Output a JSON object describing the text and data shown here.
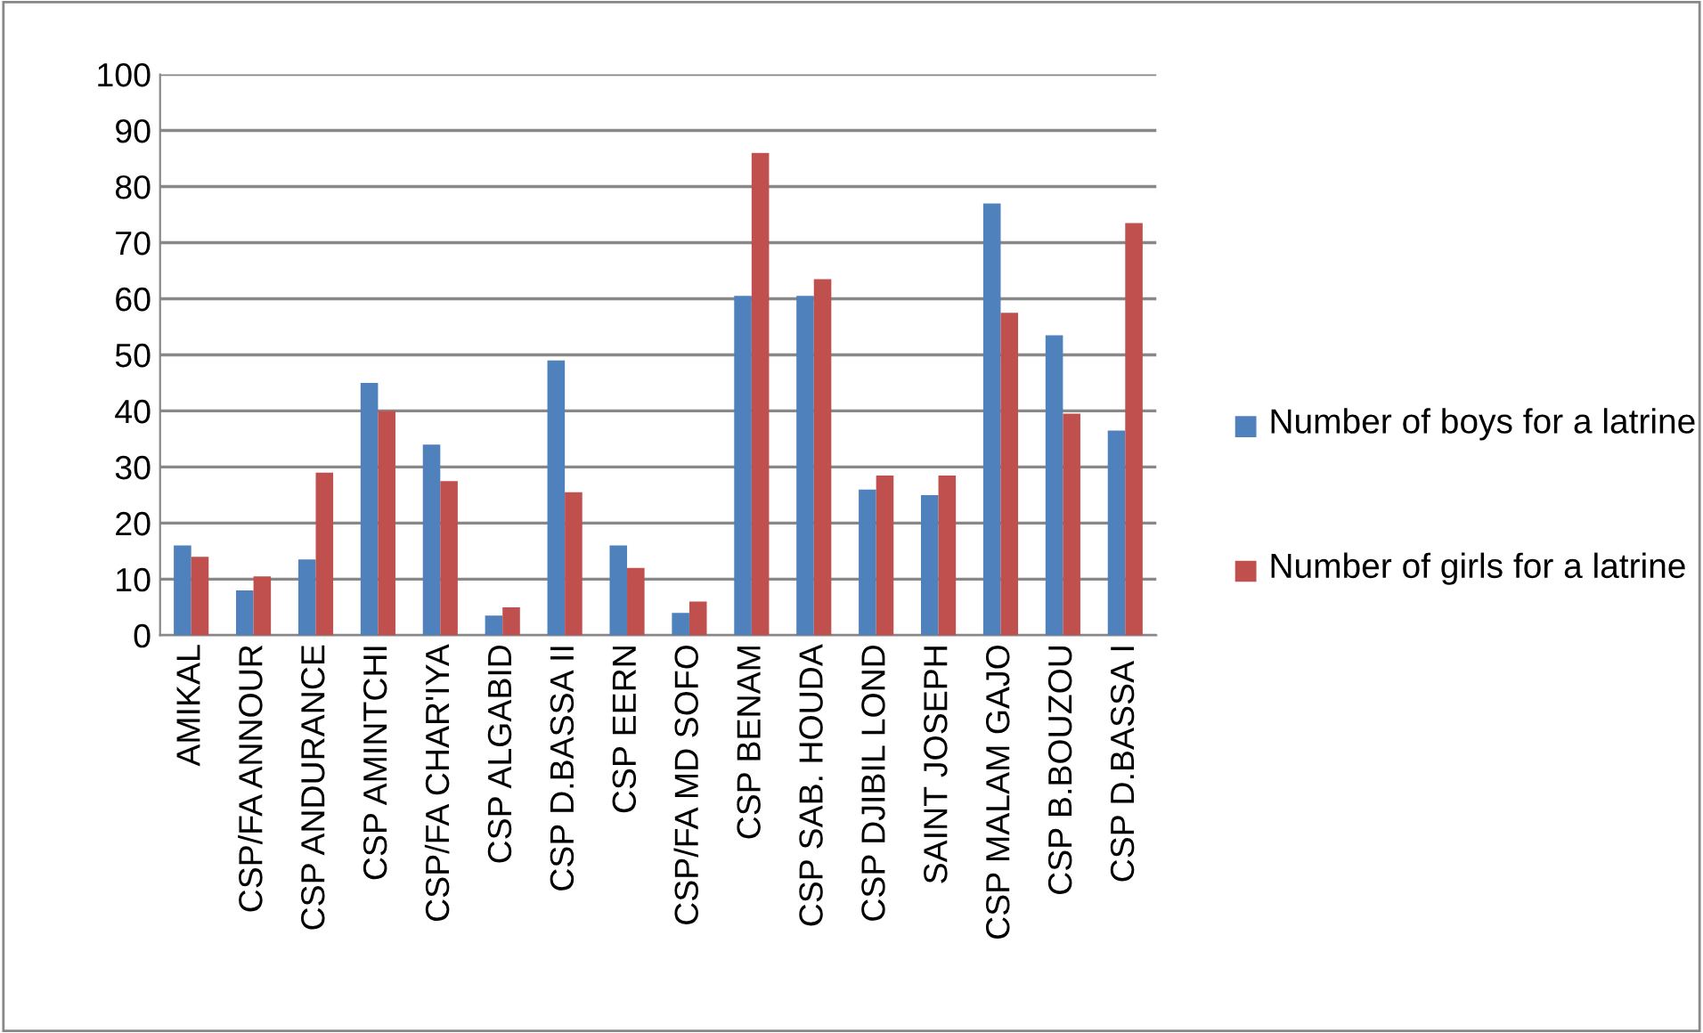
{
  "chart_data": {
    "type": "bar",
    "categories": [
      "AMIKAL",
      "CSP/FA ANNOUR",
      "CSP ANDURANCE",
      "CSP AMINTCHI",
      "CSP/FA CHAR'IYA",
      "CSP ALGABID",
      "CSP D.BASSA II",
      "CSP EERN",
      "CSP/FA MD SOFO",
      "CSP BENAM",
      "CSP SAB. HOUDA",
      "CSP DJIBIL LOND",
      "SAINT JOSEPH",
      "CSP MALAM GAJO",
      "CSP B.BOUZOU",
      "CSP D.BASSA I"
    ],
    "series": [
      {
        "name": "Number of boys for a latrine",
        "color": "#4f81bd",
        "values": [
          16,
          8,
          13.5,
          45,
          34,
          3.5,
          49,
          16,
          4,
          60.5,
          60.5,
          26,
          25,
          77,
          53.5,
          36.5
        ]
      },
      {
        "name": "Number of girls for a latrine",
        "color": "#c0504d",
        "values": [
          14,
          10.5,
          29,
          40,
          27.5,
          5,
          25.5,
          12,
          6,
          86,
          63.5,
          28.5,
          28.5,
          57.5,
          39.5,
          73.5
        ]
      }
    ],
    "ylim": [
      0,
      100
    ],
    "yticks": [
      0,
      10,
      20,
      30,
      40,
      50,
      60,
      70,
      80,
      90,
      100
    ],
    "grid": "y",
    "legend": "right"
  }
}
